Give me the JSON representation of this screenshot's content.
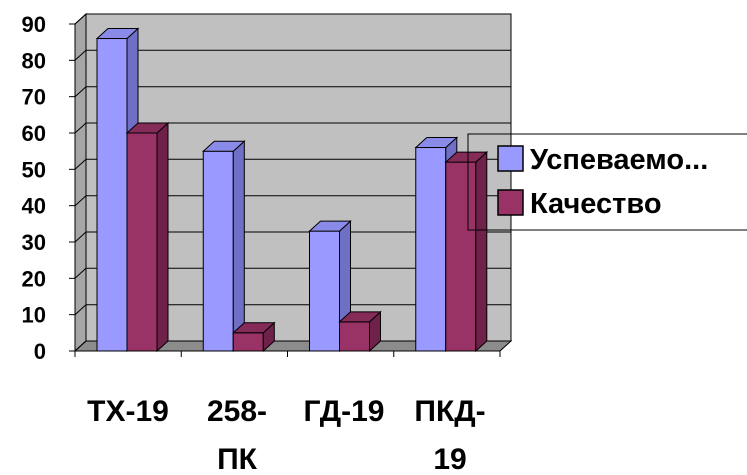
{
  "chart_data": {
    "type": "bar",
    "three_d": true,
    "categories": [
      [
        "ТХ-19"
      ],
      [
        "258-",
        "ПК"
      ],
      [
        "ГД-19"
      ],
      [
        "ПКД-",
        "19"
      ]
    ],
    "series": [
      {
        "name": "Успеваемо...",
        "values": [
          86,
          55,
          33,
          56
        ],
        "color": "#9999ff",
        "side_color": "#6f6fc6",
        "top_color": "#8a8ae8"
      },
      {
        "name": "Качество",
        "values": [
          60,
          5,
          8,
          52
        ],
        "color": "#993366",
        "side_color": "#6e2149",
        "top_color": "#842b58"
      }
    ],
    "ylim": [
      0,
      90
    ],
    "yticks": [
      "0",
      "10",
      "20",
      "30",
      "40",
      "50",
      "60",
      "70",
      "80",
      "90"
    ],
    "grid": true,
    "plot_background": "#c0c0c0",
    "legend_position": "right"
  }
}
